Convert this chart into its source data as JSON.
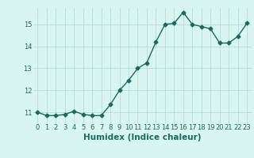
{
  "x": [
    0,
    1,
    2,
    3,
    4,
    5,
    6,
    7,
    8,
    9,
    10,
    11,
    12,
    13,
    14,
    15,
    16,
    17,
    18,
    19,
    20,
    21,
    22,
    23
  ],
  "y": [
    11.0,
    10.85,
    10.85,
    10.9,
    11.05,
    10.9,
    10.85,
    10.85,
    11.35,
    12.0,
    12.45,
    13.0,
    13.25,
    14.2,
    15.0,
    15.05,
    15.55,
    15.0,
    14.9,
    14.8,
    14.15,
    14.15,
    14.45,
    15.05
  ],
  "line_color": "#1a6b5a",
  "marker": "D",
  "marker_size": 2.5,
  "bg_color": "#d8f5f0",
  "grid_color": "#b8dad5",
  "xlabel": "Humidex (Indice chaleur)",
  "xlabel_fontsize": 7.5,
  "xlabel_color": "#1a6b5a",
  "ylim": [
    10.5,
    15.75
  ],
  "yticks": [
    11,
    12,
    13,
    14,
    15
  ],
  "xticks": [
    0,
    1,
    2,
    3,
    4,
    5,
    6,
    7,
    8,
    9,
    10,
    11,
    12,
    13,
    14,
    15,
    16,
    17,
    18,
    19,
    20,
    21,
    22,
    23
  ],
  "tick_fontsize": 6,
  "tick_color": "#1a6b5a",
  "linewidth": 1.0
}
